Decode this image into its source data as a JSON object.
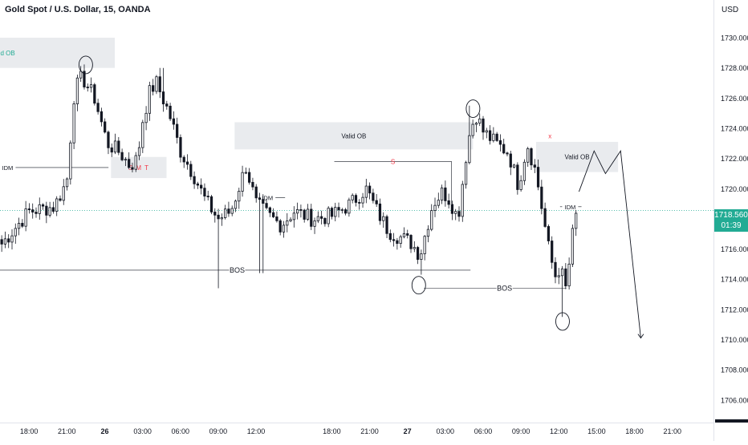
{
  "header": {
    "title": "Gold Spot / U.S. Dollar, 15, OANDA",
    "currency": "USD"
  },
  "last_price": {
    "price": "1718.560",
    "countdown": "01:39",
    "color": "#22ab94"
  },
  "colors": {
    "up": "#131722",
    "down": "#131722",
    "zone": "#e9ebee",
    "smt": "#f23645",
    "ob_text": "#22ab94"
  },
  "icons": {
    "countdown": "clock-icon"
  },
  "chart_data": {
    "type": "candlestick",
    "title": "Gold Spot / U.S. Dollar, 15, OANDA",
    "interval": "15",
    "ylim": [
      1704.5,
      1732.5
    ],
    "y_ticks": [
      "1706.000",
      "1708.000",
      "1710.000",
      "1712.000",
      "1714.000",
      "1716.000",
      "1718.000",
      "1720.000",
      "1722.000",
      "1724.000",
      "1726.000",
      "1728.000",
      "1730.000"
    ],
    "x_ticks": [
      "18:00",
      "21:00",
      "26",
      "03:00",
      "06:00",
      "09:00",
      "12:00",
      "18:00",
      "21:00",
      "27",
      "03:00",
      "06:00",
      "09:00",
      "12:00",
      "15:00",
      "18:00",
      "21:00"
    ],
    "x_tick_hours": [
      18,
      21,
      24,
      27,
      30,
      33,
      36,
      42,
      45,
      48,
      51,
      54,
      57,
      60,
      63,
      66,
      69
    ],
    "hours_visible": [
      15.7,
      72.2
    ],
    "last_price": 1718.56,
    "candle_count": 168,
    "path": [
      [
        15.7,
        1716.2
      ],
      [
        18.0,
        1718.5
      ],
      [
        20.0,
        1718.8
      ],
      [
        21.0,
        1720.5
      ],
      [
        21.6,
        1726.5
      ],
      [
        22.2,
        1727.4
      ],
      [
        23.2,
        1726.0
      ],
      [
        24.2,
        1723.0
      ],
      [
        25.2,
        1722.4
      ],
      [
        26.0,
        1721.5
      ],
      [
        26.6,
        1722.0
      ],
      [
        27.0,
        1724.5
      ],
      [
        27.6,
        1726.5
      ],
      [
        28.1,
        1727.0
      ],
      [
        28.6,
        1726.0
      ],
      [
        29.1,
        1725.0
      ],
      [
        30.0,
        1722.5
      ],
      [
        31.0,
        1721.0
      ],
      [
        32.0,
        1719.2
      ],
      [
        33.0,
        1718.0
      ],
      [
        34.0,
        1718.5
      ],
      [
        35.2,
        1721.5
      ],
      [
        36.0,
        1719.0
      ],
      [
        37.0,
        1718.2
      ],
      [
        38.0,
        1717.6
      ],
      [
        39.0,
        1718.5
      ],
      [
        40.5,
        1718.0
      ],
      [
        42.0,
        1718.2
      ],
      [
        43.5,
        1719.0
      ],
      [
        44.7,
        1720.0
      ],
      [
        45.6,
        1718.5
      ],
      [
        46.5,
        1717.2
      ],
      [
        47.4,
        1716.8
      ],
      [
        48.3,
        1716.4
      ],
      [
        49.0,
        1715.6
      ],
      [
        50.0,
        1719.0
      ],
      [
        50.8,
        1719.8
      ],
      [
        51.4,
        1719.2
      ],
      [
        52.0,
        1718.0
      ],
      [
        52.8,
        1723.2
      ],
      [
        53.4,
        1725.0
      ],
      [
        54.0,
        1723.8
      ],
      [
        55.0,
        1723.0
      ],
      [
        56.0,
        1722.4
      ],
      [
        56.8,
        1720.2
      ],
      [
        57.5,
        1723.0
      ],
      [
        58.2,
        1721.0
      ],
      [
        58.8,
        1718.0
      ],
      [
        59.2,
        1716.0
      ],
      [
        59.7,
        1714.2
      ],
      [
        60.1,
        1714.8
      ],
      [
        60.6,
        1713.2
      ],
      [
        61.0,
        1716.5
      ],
      [
        61.5,
        1718.8
      ]
    ],
    "hl_pad": 0.45,
    "spikes": [
      {
        "hour": 33.1,
        "low": 1713.4
      },
      {
        "hour": 36.4,
        "low": 1714.4
      },
      {
        "hour": 49.1,
        "low": 1714.3
      },
      {
        "hour": 60.2,
        "low": 1711.5
      },
      {
        "hour": 28.5,
        "high": 1728.0
      },
      {
        "hour": 53.0,
        "high": 1725.5
      }
    ],
    "zones": [
      {
        "label": "ed OB",
        "from_hour": 15.7,
        "to_hour": 24.8,
        "top": 1730.0,
        "bottom": 1728.0,
        "label_color": "#22ab94"
      },
      {
        "label": "S M T",
        "from_hour": 24.5,
        "to_hour": 28.9,
        "top": 1722.1,
        "bottom": 1720.7,
        "label_color": "#f23645"
      },
      {
        "label": "Valid OB",
        "from_hour": 34.3,
        "to_hour": 53.2,
        "top": 1724.4,
        "bottom": 1722.6,
        "label_color": "#131722"
      },
      {
        "label": "Valid OB",
        "from_hour": 58.2,
        "to_hour": 64.7,
        "top": 1723.1,
        "bottom": 1721.1,
        "label_color": "#131722"
      }
    ],
    "lines": [
      {
        "label": "IDM",
        "from_hour": 15.7,
        "to_hour": 24.3,
        "price": 1721.4,
        "label_hour": 16.3
      },
      {
        "label": "IDM",
        "from_hour": 36.2,
        "to_hour": 38.3,
        "price": 1719.4,
        "label_hour": 36.9
      },
      {
        "label": "IDM",
        "from_hour": 60.1,
        "to_hour": 61.8,
        "price": 1718.8,
        "label_hour": 60.9
      },
      {
        "label": "BOS",
        "from_hour": 15.7,
        "to_hour": 53.0,
        "price": 1714.6,
        "label_hour": 34.5
      },
      {
        "label": "BOS",
        "from_hour": 49.3,
        "to_hour": 60.6,
        "price": 1713.4,
        "label_hour": 55.7
      }
    ],
    "s_line": {
      "label": "S",
      "from_hour": 42.2,
      "to_hour": 51.5,
      "price": 1721.8
    },
    "x_marker": {
      "label": "x",
      "hour": 59.3,
      "price": 1723.5
    },
    "circles": [
      {
        "hour": 22.5,
        "price": 1728.2
      },
      {
        "hour": 53.2,
        "price": 1725.3
      },
      {
        "hour": 48.9,
        "price": 1713.6
      },
      {
        "hour": 60.3,
        "price": 1711.2
      }
    ],
    "projection": [
      [
        61.6,
        1719.8
      ],
      [
        62.8,
        1722.5
      ],
      [
        63.7,
        1721.0
      ],
      [
        64.9,
        1722.5
      ],
      [
        66.5,
        1710.1
      ]
    ]
  }
}
